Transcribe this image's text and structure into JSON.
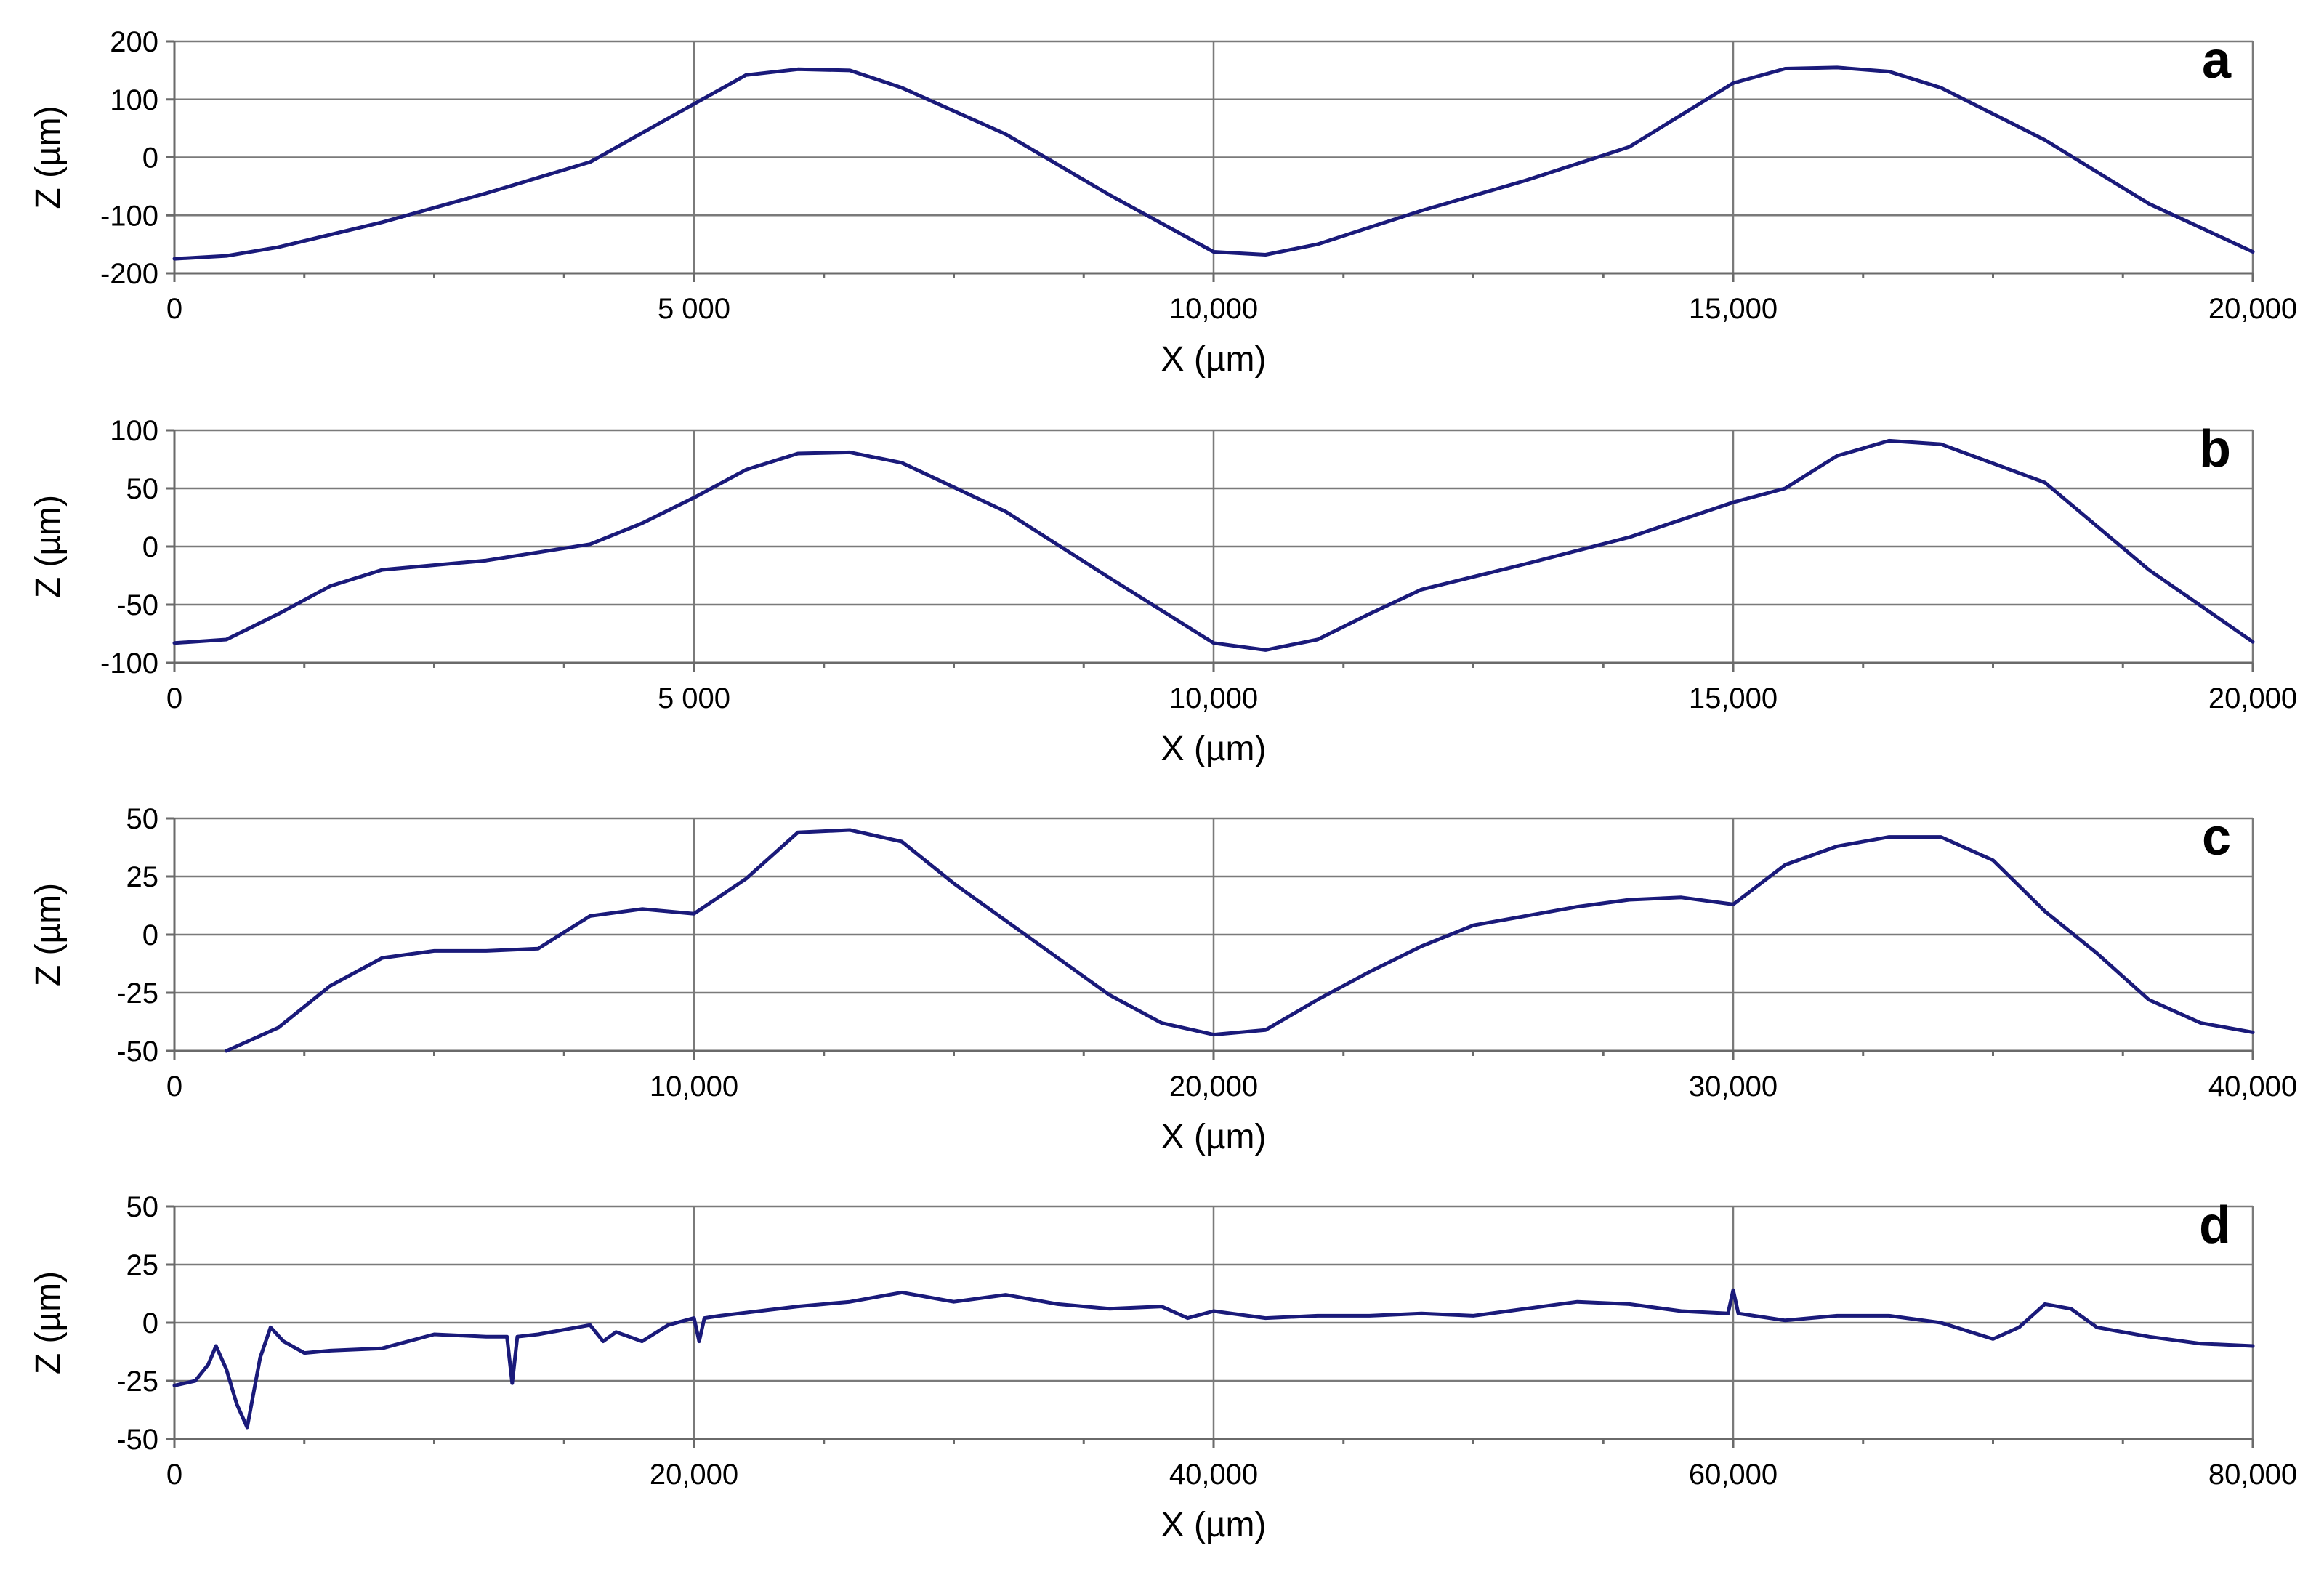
{
  "chart_data": [
    {
      "panel": "a",
      "type": "line",
      "xlabel": "X (µm)",
      "ylabel": "Z (µm)",
      "xlim": [
        0,
        20000
      ],
      "ylim": [
        -200,
        200
      ],
      "xticks": [
        0,
        5000,
        10000,
        15000,
        20000
      ],
      "xtick_labels": [
        "0",
        "5 000",
        "10,000",
        "15,000",
        "20,000"
      ],
      "yticks": [
        -200,
        -100,
        0,
        100,
        200
      ],
      "ytick_labels": [
        "-200",
        "-100",
        "0",
        "100",
        "200"
      ],
      "grid": true,
      "series": [
        {
          "color": "#1a1a7a",
          "x": [
            0,
            500,
            1000,
            2000,
            3000,
            4000,
            5000,
            5500,
            6000,
            6500,
            7000,
            8000,
            9000,
            10000,
            10500,
            11000,
            12000,
            13000,
            14000,
            15000,
            15500,
            16000,
            16500,
            17000,
            18000,
            19000,
            20000
          ],
          "y": [
            -175,
            -170,
            -155,
            -112,
            -62,
            -8,
            92,
            142,
            152,
            150,
            120,
            40,
            -65,
            -163,
            -168,
            -150,
            -92,
            -40,
            18,
            128,
            153,
            155,
            148,
            120,
            30,
            -80,
            -163
          ]
        }
      ]
    },
    {
      "panel": "b",
      "type": "line",
      "xlabel": "X (µm)",
      "ylabel": "Z (µm)",
      "xlim": [
        0,
        20000
      ],
      "ylim": [
        -100,
        100
      ],
      "xticks": [
        0,
        5000,
        10000,
        15000,
        20000
      ],
      "xtick_labels": [
        "0",
        "5 000",
        "10,000",
        "15,000",
        "20,000"
      ],
      "yticks": [
        -100,
        -50,
        0,
        50,
        100
      ],
      "ytick_labels": [
        "-100",
        "-50",
        "0",
        "50",
        "100"
      ],
      "grid": true,
      "series": [
        {
          "color": "#1a1a7a",
          "x": [
            0,
            500,
            1000,
            1500,
            2000,
            3000,
            4000,
            4500,
            5000,
            5500,
            6000,
            6500,
            7000,
            8000,
            9000,
            10000,
            10500,
            11000,
            11500,
            12000,
            13000,
            14000,
            15000,
            15500,
            16000,
            16500,
            17000,
            18000,
            19000,
            20000
          ],
          "y": [
            -83,
            -80,
            -58,
            -34,
            -20,
            -12,
            2,
            20,
            42,
            66,
            80,
            81,
            72,
            30,
            -27,
            -83,
            -89,
            -80,
            -58,
            -37,
            -15,
            8,
            38,
            50,
            78,
            91,
            88,
            55,
            -20,
            -82
          ]
        }
      ]
    },
    {
      "panel": "c",
      "type": "line",
      "xlabel": "X (µm)",
      "ylabel": "Z (µm)",
      "xlim": [
        0,
        40000
      ],
      "ylim": [
        -50,
        50
      ],
      "xticks": [
        0,
        10000,
        20000,
        30000,
        40000
      ],
      "xtick_labels": [
        "0",
        "10,000",
        "20,000",
        "30,000",
        "40,000"
      ],
      "yticks": [
        -50,
        -25,
        0,
        25,
        50
      ],
      "ytick_labels": [
        "-50",
        "-25",
        "0",
        "25",
        "50"
      ],
      "grid": true,
      "series": [
        {
          "color": "#1a1a7a",
          "x": [
            1000,
            2000,
            3000,
            4000,
            5000,
            6000,
            7000,
            8000,
            9000,
            10000,
            11000,
            12000,
            13000,
            14000,
            15000,
            16000,
            17000,
            18000,
            19000,
            20000,
            21000,
            22000,
            23000,
            24000,
            25000,
            26000,
            27000,
            28000,
            29000,
            30000,
            31000,
            32000,
            33000,
            34000,
            35000,
            36000,
            37000,
            38000,
            39000,
            40000
          ],
          "y": [
            -50,
            -40,
            -22,
            -10,
            -7,
            -7,
            -6,
            8,
            11,
            9,
            24,
            44,
            45,
            40,
            22,
            6,
            -10,
            -26,
            -38,
            -43,
            -41,
            -28,
            -16,
            -5,
            4,
            8,
            12,
            15,
            16,
            13,
            30,
            38,
            42,
            42,
            32,
            10,
            -8,
            -28,
            -38,
            -42
          ]
        }
      ]
    },
    {
      "panel": "d",
      "type": "line",
      "xlabel": "X (µm)",
      "ylabel": "Z (µm)",
      "xlim": [
        0,
        80000
      ],
      "ylim": [
        -50,
        50
      ],
      "xticks": [
        0,
        20000,
        40000,
        60000,
        80000
      ],
      "xtick_labels": [
        "0",
        "20,000",
        "40,000",
        "60,000",
        "80,000"
      ],
      "yticks": [
        -50,
        -25,
        0,
        25,
        50
      ],
      "ytick_labels": [
        "-50",
        "-25",
        "0",
        "25",
        "50"
      ],
      "grid": true,
      "series": [
        {
          "color": "#1a1a7a",
          "x": [
            0,
            800,
            1300,
            1600,
            2000,
            2400,
            2800,
            3300,
            3700,
            4200,
            5000,
            6000,
            8000,
            10000,
            12000,
            12800,
            13000,
            13200,
            14000,
            16000,
            16500,
            17000,
            18000,
            19000,
            20000,
            20200,
            20400,
            21000,
            24000,
            26000,
            28000,
            30000,
            32000,
            34000,
            36000,
            38000,
            39000,
            40000,
            42000,
            44000,
            46000,
            48000,
            50000,
            52000,
            54000,
            56000,
            58000,
            59800,
            60000,
            60200,
            62000,
            64000,
            66000,
            68000,
            70000,
            71000,
            72000,
            73000,
            74000,
            76000,
            78000,
            80000
          ],
          "y": [
            -27,
            -25,
            -18,
            -10,
            -20,
            -35,
            -45,
            -15,
            -2,
            -8,
            -13,
            -12,
            -11,
            -5,
            -6,
            -6,
            -26,
            -6,
            -5,
            -1,
            -8,
            -4,
            -8,
            -1,
            2,
            -8,
            2,
            3,
            7,
            9,
            13,
            9,
            12,
            8,
            6,
            7,
            2,
            5,
            2,
            3,
            3,
            4,
            3,
            6,
            9,
            8,
            5,
            4,
            14,
            4,
            1,
            3,
            3,
            0,
            -7,
            -2,
            8,
            6,
            -2,
            -6,
            -9,
            -10
          ]
        }
      ]
    }
  ]
}
